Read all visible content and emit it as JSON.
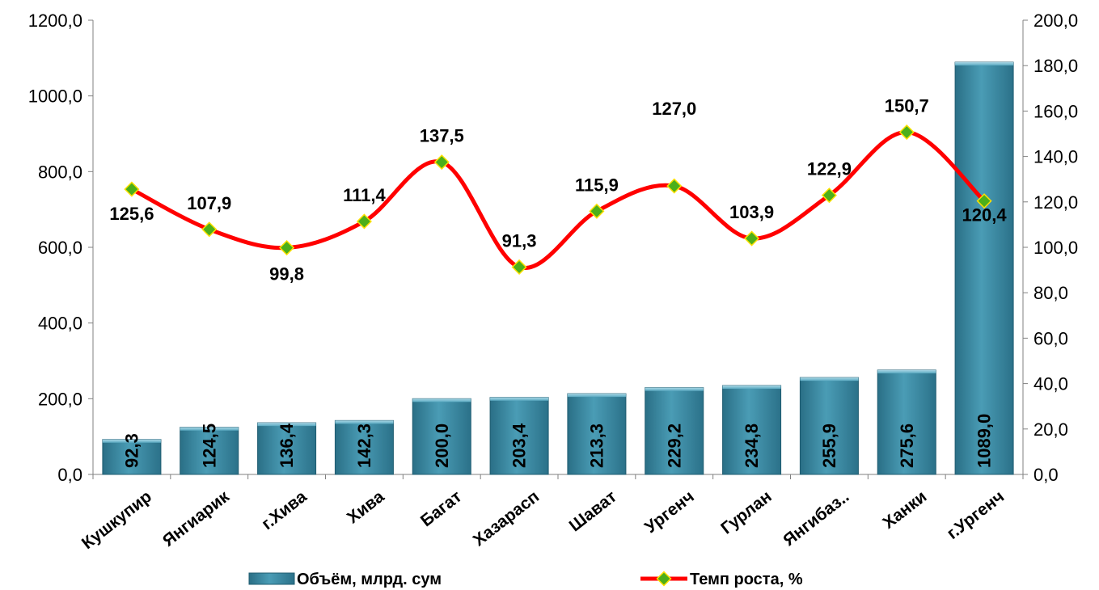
{
  "chart_data": {
    "type": "bar",
    "categories": [
      "Кушкупир",
      "Янгиарик",
      "г.Хива",
      "Хива",
      "Багат",
      "Хазарасп",
      "Шават",
      "Ургенч",
      "Гурлан",
      "Янгибаз..",
      "Ханки",
      "г.Ургенч"
    ],
    "series": [
      {
        "name": "Объём, млрд. сум",
        "type": "bar",
        "axis": "left",
        "values": [
          92.3,
          124.5,
          136.4,
          142.3,
          200.0,
          203.4,
          213.3,
          229.2,
          234.8,
          255.9,
          275.6,
          1089.0
        ],
        "labels": [
          "92,3",
          "124,5",
          "136,4",
          "142,3",
          "200,0",
          "203,4",
          "213,3",
          "229,2",
          "234,8",
          "255,9",
          "275,6",
          "1089,0"
        ],
        "color": "#3a8aa2"
      },
      {
        "name": "Темп роста, %",
        "type": "line",
        "axis": "right",
        "values": [
          125.6,
          107.9,
          99.8,
          111.4,
          137.5,
          91.3,
          115.9,
          127.0,
          103.9,
          122.9,
          150.7,
          120.4
        ],
        "labels": [
          "125,6",
          "107,9",
          "99,8",
          "111,4",
          "137,5",
          "91,3",
          "115,9",
          "127,0",
          "103,9",
          "122,9",
          "150,7",
          "120,4"
        ],
        "line_color": "#ff0000",
        "marker_color": "#4caf1a",
        "marker_edge_color": "#ffe000"
      }
    ],
    "y_left": {
      "ticks": [
        "0,0",
        "200,0",
        "400,0",
        "600,0",
        "800,0",
        "1000,0",
        "1200,0"
      ],
      "ylim": [
        0,
        1200
      ]
    },
    "y_right": {
      "ticks": [
        "0,0",
        "20,0",
        "40,0",
        "60,0",
        "80,0",
        "100,0",
        "120,0",
        "140,0",
        "160,0",
        "180,0",
        "200,0"
      ],
      "ylim": [
        0,
        200
      ]
    },
    "legend_position": "bottom",
    "grid": false
  }
}
